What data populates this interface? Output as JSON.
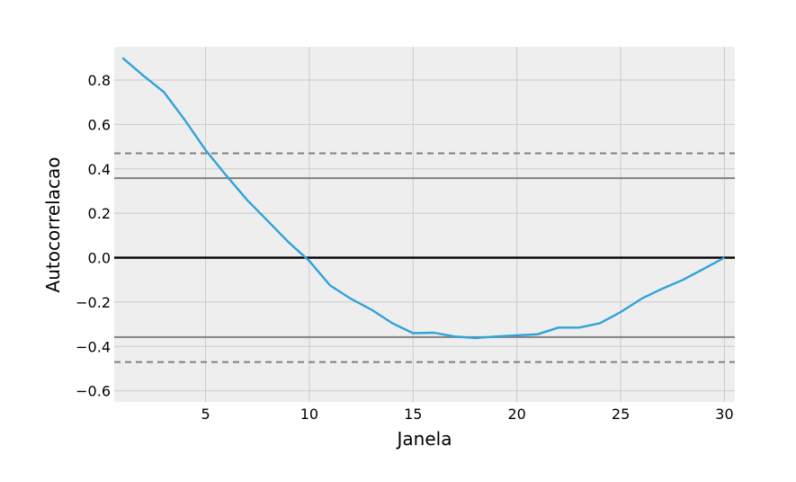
{
  "chart_data": {
    "type": "line",
    "title": "",
    "xlabel": "Janela",
    "ylabel": "Autocorrelacao",
    "xlim": [
      0.6,
      30.5
    ],
    "ylim": [
      -0.65,
      0.95
    ],
    "xticks": [
      5,
      10,
      15,
      20,
      25,
      30
    ],
    "xtick_labels": [
      "5",
      "10",
      "15",
      "20",
      "25",
      "30"
    ],
    "yticks": [
      0.8,
      0.6,
      0.4,
      0.2,
      0.0,
      -0.2,
      -0.4,
      -0.6
    ],
    "ytick_labels": [
      "0.8",
      "0.6",
      "0.4",
      "0.2",
      "0.0",
      "−0.2",
      "−0.4",
      "−0.6"
    ],
    "grid": true,
    "background": "#eeeeee",
    "series": [
      {
        "color": "#30a2da",
        "x": [
          1,
          2,
          3,
          4,
          5,
          6,
          7,
          8,
          9,
          10,
          11,
          12,
          13,
          14,
          15,
          16,
          17,
          18,
          19,
          20,
          21,
          22,
          23,
          24,
          25,
          26,
          27,
          28,
          29,
          30
        ],
        "y": [
          0.9,
          0.82,
          0.745,
          0.62,
          0.485,
          0.37,
          0.26,
          0.165,
          0.07,
          -0.015,
          -0.125,
          -0.185,
          -0.235,
          -0.295,
          -0.34,
          -0.338,
          -0.355,
          -0.362,
          -0.355,
          -0.35,
          -0.345,
          -0.315,
          -0.315,
          -0.295,
          -0.245,
          -0.185,
          -0.14,
          -0.1,
          -0.05,
          0.0
        ]
      }
    ],
    "reference_lines": [
      {
        "y": 0.0,
        "style": "solid",
        "color": "#000000"
      },
      {
        "y": 0.358,
        "style": "solid",
        "color": "#808080"
      },
      {
        "y": -0.358,
        "style": "solid",
        "color": "#808080"
      },
      {
        "y": 0.47,
        "style": "dashed",
        "color": "#808080"
      },
      {
        "y": -0.47,
        "style": "dashed",
        "color": "#808080"
      }
    ]
  }
}
